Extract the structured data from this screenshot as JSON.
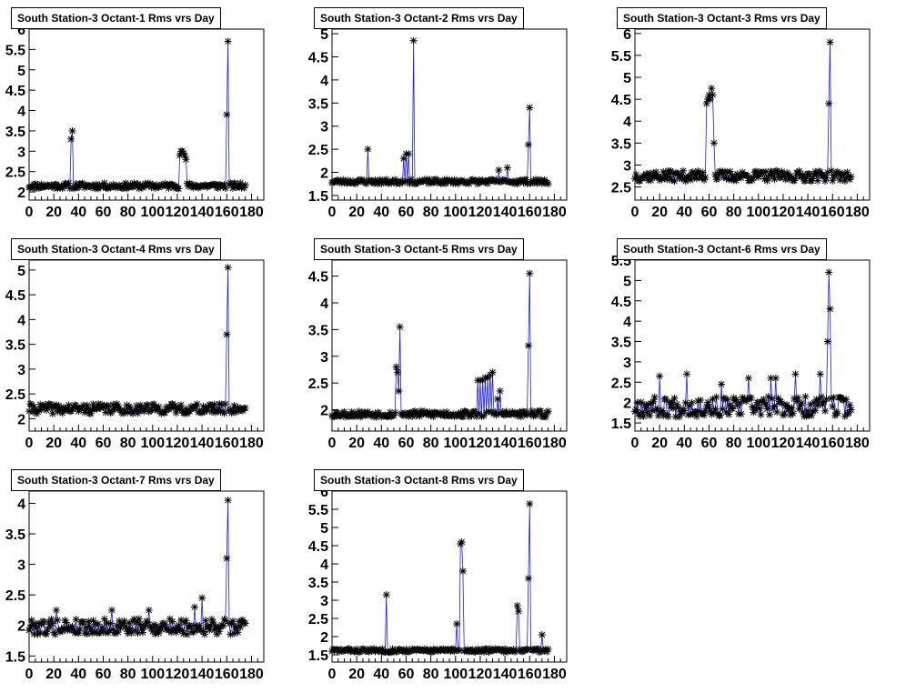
{
  "chart_data": [
    {
      "type": "line",
      "title": "South Station-3 Octant-1 Rms vrs Day",
      "xlim": [
        0,
        190
      ],
      "ylim": [
        1.8,
        6.0
      ],
      "xticks": [
        "0",
        "20",
        "40",
        "60",
        "80",
        "100",
        "120",
        "140",
        "160",
        "180"
      ],
      "yticks": [
        "2",
        "2.5",
        "3",
        "3.5",
        "4",
        "4.5",
        "5",
        "5.5",
        "6"
      ],
      "baseline": 2.15,
      "noise": 0.07,
      "seed": 11,
      "spikes": [
        [
          34,
          3.3
        ],
        [
          35,
          3.5
        ],
        [
          122,
          2.9
        ],
        [
          123,
          3.0
        ],
        [
          124,
          3.0
        ],
        [
          125,
          2.95
        ],
        [
          126,
          2.9
        ],
        [
          127,
          2.8
        ],
        [
          160,
          3.9
        ],
        [
          161,
          5.7
        ]
      ]
    },
    {
      "type": "line",
      "title": "South Station-3 Octant-2 Rms vrs Day",
      "xlim": [
        0,
        190
      ],
      "ylim": [
        1.4,
        5.1
      ],
      "xticks": [
        "0",
        "20",
        "40",
        "60",
        "80",
        "100",
        "120",
        "140",
        "160",
        "180"
      ],
      "yticks": [
        "1.5",
        "2",
        "2.5",
        "3",
        "3.5",
        "4",
        "4.5",
        "5"
      ],
      "baseline": 1.8,
      "noise": 0.05,
      "seed": 23,
      "spikes": [
        [
          29,
          2.5
        ],
        [
          58,
          2.3
        ],
        [
          60,
          2.4
        ],
        [
          62,
          2.4
        ],
        [
          66,
          4.85
        ],
        [
          135,
          2.05
        ],
        [
          142,
          2.1
        ],
        [
          159,
          2.6
        ],
        [
          160,
          3.4
        ]
      ]
    },
    {
      "type": "line",
      "title": "South Station-3 Octant-3 Rms vrs Day",
      "xlim": [
        0,
        190
      ],
      "ylim": [
        2.2,
        6.1
      ],
      "xticks": [
        "0",
        "20",
        "40",
        "60",
        "80",
        "100",
        "120",
        "140",
        "160",
        "180"
      ],
      "yticks": [
        "2.5",
        "3",
        "3.5",
        "4",
        "4.5",
        "5",
        "5.5",
        "6"
      ],
      "baseline": 2.75,
      "noise": 0.12,
      "seed": 37,
      "spikes": [
        [
          58,
          4.4
        ],
        [
          59,
          4.5
        ],
        [
          60,
          4.6
        ],
        [
          61,
          4.5
        ],
        [
          62,
          4.75
        ],
        [
          63,
          4.6
        ],
        [
          64,
          3.5
        ],
        [
          157,
          4.4
        ],
        [
          158,
          5.8
        ]
      ]
    },
    {
      "type": "line",
      "title": "South Station-3 Octant-4 Rms vrs Day",
      "xlim": [
        0,
        190
      ],
      "ylim": [
        1.75,
        5.2
      ],
      "xticks": [
        "0",
        "20",
        "40",
        "60",
        "80",
        "100",
        "120",
        "140",
        "160",
        "180"
      ],
      "yticks": [
        "2",
        "2.5",
        "3",
        "3.5",
        "4",
        "4.5",
        "5"
      ],
      "baseline": 2.2,
      "noise": 0.1,
      "seed": 41,
      "spikes": [
        [
          160,
          3.7
        ],
        [
          161,
          5.05
        ]
      ]
    },
    {
      "type": "line",
      "title": "South Station-3 Octant-5 Rms vrs Day",
      "xlim": [
        0,
        190
      ],
      "ylim": [
        1.6,
        4.8
      ],
      "xticks": [
        "0",
        "20",
        "40",
        "60",
        "80",
        "100",
        "120",
        "140",
        "160",
        "180"
      ],
      "yticks": [
        "2",
        "2.5",
        "3",
        "3.5",
        "4",
        "4.5"
      ],
      "baseline": 1.92,
      "noise": 0.06,
      "seed": 53,
      "spikes": [
        [
          52,
          2.8
        ],
        [
          53,
          2.7
        ],
        [
          54,
          2.35
        ],
        [
          55,
          3.55
        ],
        [
          118,
          2.55
        ],
        [
          120,
          2.55
        ],
        [
          122,
          2.55
        ],
        [
          124,
          2.6
        ],
        [
          126,
          2.6
        ],
        [
          128,
          2.65
        ],
        [
          130,
          2.7
        ],
        [
          134,
          2.2
        ],
        [
          136,
          2.35
        ],
        [
          159,
          3.2
        ],
        [
          160,
          4.55
        ]
      ]
    },
    {
      "type": "line",
      "title": "South Station-3 Octant-6 Rms vrs Day",
      "xlim": [
        0,
        190
      ],
      "ylim": [
        1.3,
        5.5
      ],
      "xticks": [
        "0",
        "20",
        "40",
        "60",
        "80",
        "100",
        "120",
        "140",
        "160",
        "180"
      ],
      "yticks": [
        "1.5",
        "2",
        "2.5",
        "3",
        "3.5",
        "4",
        "4.5",
        "5",
        "5.5"
      ],
      "baseline": 1.9,
      "noise": 0.25,
      "seed": 67,
      "spikes": [
        [
          20,
          2.65
        ],
        [
          42,
          2.7
        ],
        [
          70,
          2.45
        ],
        [
          92,
          2.6
        ],
        [
          110,
          2.6
        ],
        [
          114,
          2.6
        ],
        [
          130,
          2.7
        ],
        [
          150,
          2.7
        ],
        [
          156,
          3.5
        ],
        [
          157,
          5.2
        ],
        [
          158,
          4.3
        ]
      ]
    },
    {
      "type": "line",
      "title": "South Station-3 Octant-7 Rms vrs Day",
      "xlim": [
        0,
        190
      ],
      "ylim": [
        1.4,
        4.2
      ],
      "xticks": [
        "0",
        "20",
        "40",
        "60",
        "80",
        "100",
        "120",
        "140",
        "160",
        "180"
      ],
      "yticks": [
        "1.5",
        "2",
        "2.5",
        "3",
        "3.5",
        "4"
      ],
      "baseline": 1.98,
      "noise": 0.13,
      "seed": 79,
      "spikes": [
        [
          22,
          2.25
        ],
        [
          67,
          2.25
        ],
        [
          97,
          2.25
        ],
        [
          134,
          2.3
        ],
        [
          140,
          2.45
        ],
        [
          160,
          3.1
        ],
        [
          161,
          4.05
        ]
      ]
    },
    {
      "type": "line",
      "title": "South Station-3 Octant-8 Rms vrs Day",
      "xlim": [
        0,
        190
      ],
      "ylim": [
        1.3,
        6.0
      ],
      "xticks": [
        "0",
        "20",
        "40",
        "60",
        "80",
        "100",
        "120",
        "140",
        "160",
        "180"
      ],
      "yticks": [
        "1.5",
        "2",
        "2.5",
        "3",
        "3.5",
        "4",
        "4.5",
        "5",
        "5.5",
        "6"
      ],
      "baseline": 1.62,
      "noise": 0.05,
      "seed": 83,
      "spikes": [
        [
          44,
          3.15
        ],
        [
          101,
          2.35
        ],
        [
          104,
          4.55
        ],
        [
          105,
          4.6
        ],
        [
          106,
          3.8
        ],
        [
          150,
          2.85
        ],
        [
          151,
          2.7
        ],
        [
          159,
          3.6
        ],
        [
          160,
          5.65
        ],
        [
          170,
          2.05
        ]
      ]
    }
  ]
}
